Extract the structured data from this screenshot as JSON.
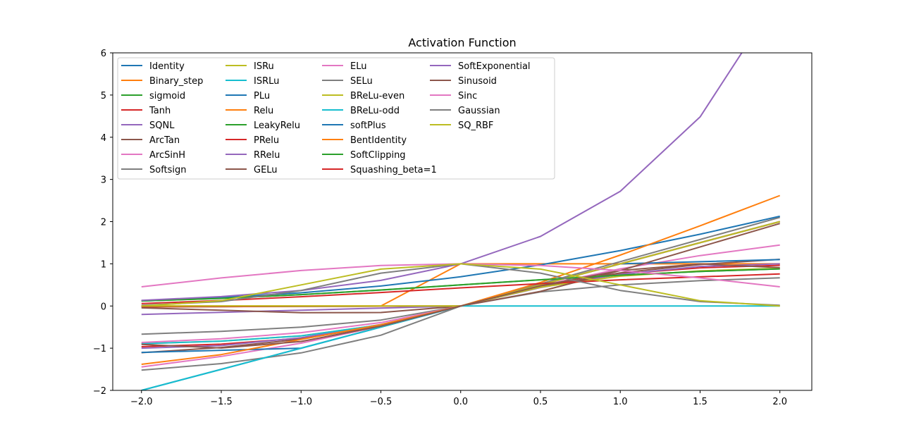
{
  "chart_data": {
    "type": "line",
    "title": "Activation Function",
    "xlabel": "",
    "ylabel": "",
    "xlim": [
      -2.18,
      2.2
    ],
    "ylim": [
      -2,
      6
    ],
    "x_ticks": [
      -2.0,
      -1.5,
      -1.0,
      -0.5,
      0.0,
      0.5,
      1.0,
      1.5,
      2.0
    ],
    "x_tick_labels": [
      "−2.0",
      "−1.5",
      "−1.0",
      "−0.5",
      "0.0",
      "0.5",
      "1.0",
      "1.5",
      "2.0"
    ],
    "y_ticks": [
      -2,
      -1,
      0,
      1,
      2,
      3,
      4,
      5,
      6
    ],
    "y_tick_labels": [
      "−2",
      "−1",
      "0",
      "1",
      "2",
      "3",
      "4",
      "5",
      "6"
    ],
    "grid": false,
    "legend_placement": "upper-left",
    "legend_columns": 4,
    "x": [
      -2.0,
      -1.5,
      -1.0,
      -0.5,
      0.0,
      0.5,
      1.0,
      1.5,
      2.0
    ],
    "series": [
      {
        "name": "Identity",
        "color": "#1f77b4",
        "values": [
          -2.0,
          -1.5,
          -1.0,
          -0.5,
          0.0,
          0.5,
          1.0,
          1.5,
          2.0
        ]
      },
      {
        "name": "Binary_step",
        "color": "#ff7f0e",
        "values": [
          0,
          0,
          0,
          0,
          1,
          1,
          1,
          1,
          1
        ]
      },
      {
        "name": "sigmoid",
        "color": "#2ca02c",
        "values": [
          0.119,
          0.182,
          0.269,
          0.378,
          0.5,
          0.622,
          0.731,
          0.818,
          0.881
        ]
      },
      {
        "name": "Tanh",
        "color": "#d62728",
        "values": [
          -0.964,
          -0.905,
          -0.762,
          -0.462,
          0.0,
          0.462,
          0.762,
          0.905,
          0.964
        ]
      },
      {
        "name": "SQNL",
        "color": "#9467bd",
        "values": [
          -1.0,
          -0.938,
          -0.75,
          -0.438,
          0.0,
          0.438,
          0.75,
          0.938,
          1.0
        ]
      },
      {
        "name": "ArcTan",
        "color": "#8c564b",
        "values": [
          -1.107,
          -0.983,
          -0.785,
          -0.464,
          0.0,
          0.464,
          0.785,
          0.983,
          1.107
        ]
      },
      {
        "name": "ArcSinH",
        "color": "#e377c2",
        "values": [
          -1.444,
          -1.195,
          -0.881,
          -0.481,
          0.0,
          0.481,
          0.881,
          1.195,
          1.444
        ]
      },
      {
        "name": "Softsign",
        "color": "#7f7f7f",
        "values": [
          -0.667,
          -0.6,
          -0.5,
          -0.333,
          0.0,
          0.333,
          0.5,
          0.6,
          0.667
        ]
      },
      {
        "name": "ISRu",
        "color": "#bcbd22",
        "values": [
          -0.894,
          -0.832,
          -0.707,
          -0.447,
          0.0,
          0.447,
          0.707,
          0.832,
          0.894
        ]
      },
      {
        "name": "ISRLu",
        "color": "#17becf",
        "values": [
          -0.894,
          -0.832,
          -0.707,
          -0.447,
          0.0,
          0.5,
          1.0,
          1.5,
          2.0
        ]
      },
      {
        "name": "PLu",
        "color": "#1f77b4",
        "values": [
          -1.1,
          -1.05,
          -1.0,
          -0.5,
          0.0,
          0.5,
          1.0,
          1.05,
          1.1
        ]
      },
      {
        "name": "Relu",
        "color": "#ff7f0e",
        "values": [
          0,
          0,
          0,
          0,
          0,
          0.5,
          1.0,
          1.5,
          2.0
        ]
      },
      {
        "name": "LeakyRelu",
        "color": "#2ca02c",
        "values": [
          -0.02,
          -0.015,
          -0.01,
          -0.005,
          0.0,
          0.5,
          1.0,
          1.5,
          2.0
        ]
      },
      {
        "name": "PRelu",
        "color": "#d62728",
        "values": [
          -0.02,
          -0.015,
          -0.01,
          -0.005,
          0.0,
          0.5,
          1.0,
          1.5,
          2.0
        ]
      },
      {
        "name": "RRelu",
        "color": "#9467bd",
        "values": [
          -0.2,
          -0.15,
          -0.1,
          -0.05,
          0.0,
          0.5,
          1.0,
          1.5,
          2.0
        ]
      },
      {
        "name": "GELu",
        "color": "#8c564b",
        "values": [
          -0.045,
          -0.1,
          -0.159,
          -0.154,
          0.0,
          0.346,
          0.841,
          1.4,
          1.955
        ]
      },
      {
        "name": "ELu",
        "color": "#e377c2",
        "values": [
          -0.865,
          -0.777,
          -0.632,
          -0.393,
          0.0,
          0.5,
          1.0,
          1.5,
          2.0
        ]
      },
      {
        "name": "SELu",
        "color": "#7f7f7f",
        "values": [
          -1.52,
          -1.366,
          -1.111,
          -0.692,
          0.0,
          0.525,
          1.051,
          1.576,
          2.101
        ]
      },
      {
        "name": "BReLu-even",
        "color": "#bcbd22",
        "values": [
          0,
          0,
          0,
          0,
          0,
          0.5,
          1.0,
          1.5,
          2.0
        ]
      },
      {
        "name": "BReLu-odd",
        "color": "#17becf",
        "values": [
          -2.0,
          -1.5,
          -1.0,
          -0.5,
          0,
          0,
          0,
          0,
          0
        ]
      },
      {
        "name": "softPlus",
        "color": "#1f77b4",
        "values": [
          0.127,
          0.201,
          0.313,
          0.474,
          0.693,
          0.974,
          1.313,
          1.701,
          2.127
        ]
      },
      {
        "name": "BentIdentity",
        "color": "#ff7f0e",
        "values": [
          -1.382,
          -1.151,
          -0.793,
          -0.441,
          0.0,
          0.559,
          1.207,
          1.901,
          2.618
        ]
      },
      {
        "name": "SoftClipping",
        "color": "#2ca02c",
        "values": [
          0.12,
          0.18,
          0.27,
          0.38,
          0.5,
          0.62,
          0.73,
          0.82,
          0.88
        ]
      },
      {
        "name": "Squashing_beta=1",
        "color": "#d62728",
        "values": [
          0.06,
          0.13,
          0.22,
          0.32,
          0.43,
          0.53,
          0.62,
          0.69,
          0.76
        ]
      },
      {
        "name": "SoftExponential",
        "color": "#9467bd",
        "values": [
          0.135,
          0.223,
          0.368,
          0.607,
          1.0,
          1.649,
          2.718,
          4.482,
          7.389
        ]
      },
      {
        "name": "Sinusoid",
        "color": "#8c564b",
        "values": [
          -0.909,
          -0.997,
          -0.841,
          -0.479,
          0.0,
          0.479,
          0.841,
          0.997,
          0.909
        ]
      },
      {
        "name": "Sinc",
        "color": "#e377c2",
        "values": [
          0.455,
          0.665,
          0.841,
          0.959,
          1.0,
          0.959,
          0.841,
          0.665,
          0.455
        ]
      },
      {
        "name": "Gaussian",
        "color": "#7f7f7f",
        "values": [
          0.018,
          0.105,
          0.368,
          0.779,
          1.0,
          0.779,
          0.368,
          0.105,
          0.018
        ]
      },
      {
        "name": "SQ_RBF",
        "color": "#bcbd22",
        "values": [
          0.0,
          0.125,
          0.5,
          0.875,
          1.0,
          0.875,
          0.5,
          0.125,
          0.0
        ]
      }
    ]
  }
}
